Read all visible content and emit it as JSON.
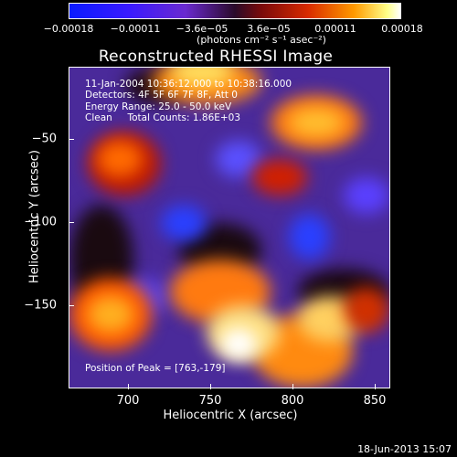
{
  "colorbar": {
    "tick_labels": [
      "−0.00018",
      "−0.00011",
      "−3.6e−05",
      "3.6e−05",
      "0.00011",
      "0.00018"
    ],
    "units": "(photons cm⁻² s⁻¹ asec⁻²)"
  },
  "title": "Reconstructed RHESSI Image",
  "info": {
    "time_range": "11-Jan-2004 10:36:12.000 to 10:38:16.000",
    "detectors": "Detectors: 4F 5F 6F 7F 8F, Att 0",
    "energy": "Energy Range: 25.0 - 50.0 keV",
    "clean": "Clean     Total Counts: 1.86E+03",
    "peak": "Position of Peak = [763,-179]"
  },
  "axes": {
    "x_ticks": [
      "700",
      "750",
      "800",
      "850"
    ],
    "y_ticks": [
      "−50",
      "−100",
      "−150"
    ],
    "xlabel": "Heliocentric X (arcsec)",
    "ylabel": "Heliocentric Y (arcsec)"
  },
  "timestamp": "18-Jun-2013 15:07"
}
